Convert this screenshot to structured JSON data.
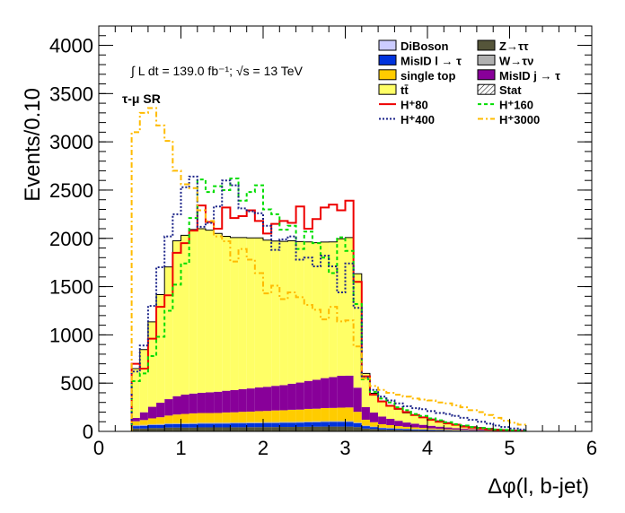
{
  "chart_data": {
    "type": "histogram",
    "ylabel": "Events/0.10",
    "xlabel": "Δφ(l, b-jet)",
    "xlim": [
      0,
      6
    ],
    "ylim": [
      0,
      4200
    ],
    "x_ticks": [
      "0",
      "1",
      "2",
      "3",
      "4",
      "5",
      "6"
    ],
    "y_ticks": [
      "0",
      "500",
      "1000",
      "1500",
      "2000",
      "2500",
      "3000",
      "3500",
      "4000"
    ],
    "annotations": {
      "lumi": "∫ L dt = 139.0 fb⁻¹;   √s = 13 TeV",
      "region": "τ-μ SR"
    },
    "bins_start": 0.4,
    "bin_width": 0.1,
    "stack": [
      {
        "name": "Z→ττ",
        "color": "#55553a",
        "values": [
          30,
          30,
          35,
          35,
          40,
          40,
          40,
          40,
          42,
          42,
          42,
          42,
          43,
          43,
          44,
          44,
          45,
          45,
          46,
          46,
          47,
          48,
          49,
          50,
          50,
          50,
          50,
          45,
          30,
          25,
          20,
          18,
          16,
          14,
          12,
          11,
          10,
          9,
          8,
          7,
          6,
          5,
          4,
          3,
          2,
          2,
          1,
          1
        ]
      },
      {
        "name": "MisID l → τ",
        "color": "#0033dd",
        "values": [
          25,
          28,
          30,
          32,
          34,
          35,
          36,
          37,
          38,
          38,
          39,
          39,
          40,
          40,
          41,
          41,
          42,
          42,
          43,
          43,
          44,
          45,
          46,
          47,
          48,
          48,
          48,
          40,
          25,
          20,
          15,
          13,
          11,
          10,
          9,
          8,
          7,
          6,
          5,
          4,
          4,
          3,
          3,
          2,
          2,
          1,
          1,
          1
        ]
      },
      {
        "name": "W→τν",
        "color": "#b0b0b0",
        "values": [
          10,
          10,
          10,
          10,
          10,
          10,
          10,
          10,
          10,
          10,
          10,
          10,
          10,
          10,
          10,
          10,
          10,
          10,
          10,
          10,
          10,
          10,
          10,
          10,
          10,
          10,
          10,
          8,
          6,
          5,
          4,
          4,
          3,
          3,
          3,
          2,
          2,
          2,
          2,
          1,
          1,
          1,
          1,
          1,
          1,
          0,
          0,
          0
        ]
      },
      {
        "name": "single top",
        "color": "#ffcc00",
        "values": [
          40,
          50,
          60,
          70,
          80,
          90,
          95,
          100,
          100,
          100,
          100,
          105,
          105,
          110,
          110,
          115,
          115,
          120,
          120,
          125,
          125,
          130,
          130,
          135,
          135,
          138,
          140,
          110,
          60,
          45,
          35,
          30,
          25,
          20,
          18,
          15,
          12,
          10,
          8,
          6,
          5,
          4,
          3,
          3,
          2,
          2,
          1,
          1
        ]
      },
      {
        "name": "MisID j → τ",
        "color": "#880099",
        "values": [
          35,
          80,
          120,
          150,
          170,
          190,
          200,
          205,
          210,
          215,
          220,
          225,
          230,
          235,
          240,
          245,
          250,
          255,
          260,
          270,
          280,
          290,
          300,
          310,
          320,
          330,
          330,
          250,
          130,
          100,
          80,
          65,
          55,
          45,
          38,
          32,
          27,
          22,
          18,
          15,
          12,
          10,
          8,
          6,
          5,
          4,
          3,
          2
        ]
      },
      {
        "name": "tt̄",
        "color": "#ffff66",
        "values": [
          510,
          650,
          880,
          1120,
          1370,
          1610,
          1650,
          1700,
          1700,
          1680,
          1640,
          1600,
          1580,
          1570,
          1560,
          1550,
          1520,
          1500,
          1490,
          1480,
          1460,
          1440,
          1420,
          1410,
          1400,
          1420,
          1430,
          1180,
          350,
          200,
          160,
          140,
          120,
          100,
          90,
          80,
          70,
          60,
          50,
          40,
          30,
          25,
          20,
          15,
          10,
          8,
          5,
          3
        ]
      },
      {
        "name": "DiBoson",
        "color": "#ccccff",
        "values": [
          0,
          0,
          0,
          0,
          0,
          0,
          0,
          0,
          0,
          0,
          0,
          0,
          0,
          0,
          0,
          0,
          0,
          0,
          0,
          0,
          0,
          0,
          0,
          0,
          0,
          0,
          0,
          0,
          0,
          0,
          0,
          0,
          0,
          0,
          0,
          0,
          0,
          0,
          0,
          0,
          0,
          0,
          0,
          0,
          0,
          0,
          0,
          0
        ]
      }
    ],
    "signals": [
      {
        "name": "H⁺80",
        "color": "#ee0000",
        "dash": "",
        "values": [
          700,
          650,
          960,
          1290,
          1410,
          1850,
          1950,
          2080,
          2340,
          2170,
          2100,
          2320,
          2210,
          2230,
          2290,
          2180,
          2050,
          2150,
          2180,
          2160,
          2330,
          2100,
          2200,
          2320,
          2350,
          2290,
          2390,
          1550,
          570,
          380,
          310,
          265,
          235,
          200,
          170,
          145,
          120,
          100,
          82,
          68,
          50,
          40,
          30,
          22,
          15,
          10,
          8,
          5
        ]
      },
      {
        "name": "H⁺160",
        "color": "#00dd00",
        "dash": "4,3",
        "values": [
          520,
          600,
          780,
          980,
          1250,
          1520,
          1740,
          2210,
          2610,
          2480,
          2540,
          2500,
          2620,
          2390,
          2480,
          2550,
          2300,
          2250,
          2090,
          2130,
          1890,
          2070,
          1950,
          1800,
          1640,
          2010,
          1870,
          1320,
          540,
          410,
          340,
          300,
          250,
          220,
          180,
          160,
          135,
          115,
          95,
          75,
          60,
          45,
          35,
          28,
          20,
          15,
          10,
          8
        ]
      },
      {
        "name": "H⁺400",
        "color": "#1a2288",
        "dash": "2,2",
        "values": [
          620,
          890,
          1300,
          1700,
          2020,
          2250,
          2530,
          2640,
          2120,
          2160,
          2330,
          2600,
          2550,
          2310,
          2280,
          2260,
          2130,
          1880,
          1990,
          2020,
          1780,
          1800,
          1710,
          1820,
          1710,
          1440,
          1740,
          1280,
          560,
          430,
          360,
          320,
          290,
          260,
          240,
          230,
          210,
          190,
          180,
          160,
          140,
          120,
          100,
          80,
          60,
          45,
          30,
          20
        ]
      },
      {
        "name": "H⁺3000",
        "color": "#ffbb00",
        "dash": "6,3,2,3",
        "values": [
          3100,
          3300,
          3350,
          3170,
          3010,
          2700,
          2560,
          2520,
          2290,
          2180,
          2020,
          1970,
          1760,
          1890,
          1780,
          1640,
          1430,
          1510,
          1370,
          1440,
          1390,
          1310,
          1260,
          1160,
          1290,
          1140,
          1150,
          880,
          550,
          470,
          430,
          400,
          380,
          360,
          340,
          330,
          320,
          300,
          290,
          270,
          250,
          220,
          200,
          170,
          140,
          110,
          90,
          70
        ]
      }
    ],
    "legend": {
      "left": [
        "DiBoson",
        "MisID l → τ",
        "single top",
        "tt̄",
        "H⁺80",
        "H⁺400"
      ],
      "right": [
        "Z→ττ",
        "W→τν",
        "MisID j → τ",
        "Stat",
        "H⁺160",
        "H⁺3000"
      ]
    }
  }
}
